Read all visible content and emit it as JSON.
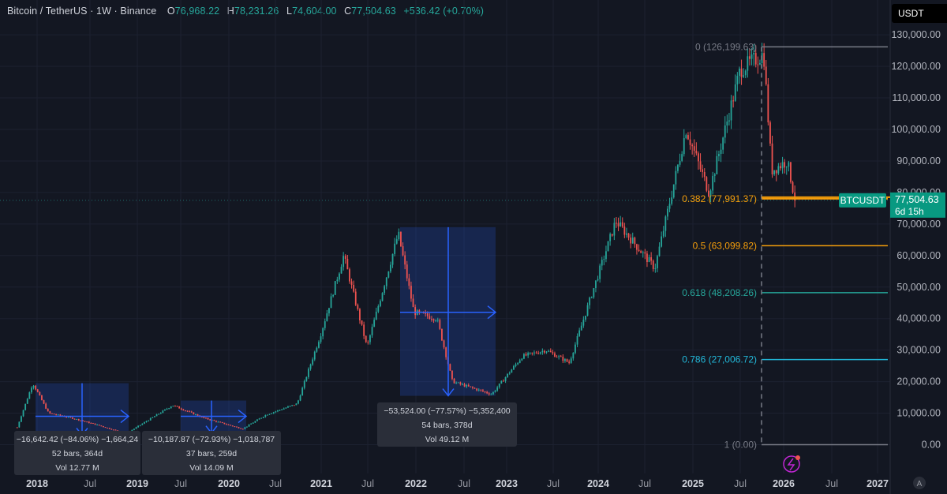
{
  "header": {
    "symbol": "Bitcoin / TetherUS · 1W · Binance",
    "open_label": "O",
    "open": "76,968.22",
    "high_label": "H",
    "high": "78,231.26",
    "low_label": "L",
    "low": "74,604.00",
    "close_label": "C",
    "close": "77,504.63",
    "change": "+536.42 (+0.70%)"
  },
  "currency_button": "USDT",
  "colors": {
    "up": "#26a69a",
    "down": "#ef5350",
    "fib0": "#787b86",
    "fib382": "#f59e0b",
    "fib5": "#f59e0b",
    "fib618": "#26a69a",
    "fib786": "#22b8d9",
    "fib1": "#787b86",
    "measure": "#2962ff"
  },
  "fibs": [
    {
      "label": "0 (126,199.63)",
      "value": 126199.63
    },
    {
      "label": "0.382 (77,991.37)",
      "value": 77991.37
    },
    {
      "label": "0.5 (63,099.82)",
      "value": 63099.82
    },
    {
      "label": "0.618 (48,208.26)",
      "value": 48208.26
    },
    {
      "label": "0.786 (27,006.72)",
      "value": 27006.72
    },
    {
      "label": "1 (0.00)",
      "value": 0
    }
  ],
  "price_tag": {
    "symbol": "BTCUSDT",
    "price": "77,504.63",
    "countdown": "6d 15h"
  },
  "measures": [
    {
      "line1": "−16,642.42 (−84.06%) −1,664,24",
      "line2": "52 bars, 364d",
      "line3": "Vol 12.77 M"
    },
    {
      "line1": "−10,187.87 (−72.93%) −1,018,787",
      "line2": "37 bars, 259d",
      "line3": "Vol 14.09 M"
    },
    {
      "line1": "−53,524.00 (−77.57%) −5,352,400",
      "line2": "54 bars, 378d",
      "line3": "Vol 49.12 M"
    }
  ],
  "chart_data": {
    "type": "candlestick",
    "y_axis": {
      "min": 0,
      "max": 130000,
      "ticks": [
        "130,000.00",
        "120,000.00",
        "110,000.00",
        "100,000.00",
        "90,000.00",
        "80,000.00",
        "70,000.00",
        "60,000.00",
        "50,000.00",
        "40,000.00",
        "30,000.00",
        "20,000.00",
        "10,000.00",
        "0.00"
      ]
    },
    "x_axis": {
      "ticks": [
        "2018",
        "Jul",
        "2019",
        "Jul",
        "2020",
        "Jul",
        "2021",
        "Jul",
        "2022",
        "Jul",
        "2023",
        "Jul",
        "2024",
        "Jul",
        "2025",
        "Jul",
        "2026",
        "Jul",
        "2027"
      ]
    },
    "series": [
      {
        "date": "2017-10",
        "price": 5500
      },
      {
        "date": "2017-12",
        "price": 19500
      },
      {
        "date": "2018-02",
        "price": 10000
      },
      {
        "date": "2018-05",
        "price": 8500
      },
      {
        "date": "2018-08",
        "price": 6500
      },
      {
        "date": "2018-12",
        "price": 3500
      },
      {
        "date": "2019-06",
        "price": 12500
      },
      {
        "date": "2019-10",
        "price": 8500
      },
      {
        "date": "2020-03",
        "price": 5000
      },
      {
        "date": "2020-06",
        "price": 9500
      },
      {
        "date": "2020-10",
        "price": 13000
      },
      {
        "date": "2021-01",
        "price": 35000
      },
      {
        "date": "2021-04",
        "price": 60000
      },
      {
        "date": "2021-07",
        "price": 31000
      },
      {
        "date": "2021-11",
        "price": 67000
      },
      {
        "date": "2022-01",
        "price": 42000
      },
      {
        "date": "2022-04",
        "price": 40000
      },
      {
        "date": "2022-06",
        "price": 20000
      },
      {
        "date": "2022-11",
        "price": 16000
      },
      {
        "date": "2023-03",
        "price": 28000
      },
      {
        "date": "2023-06",
        "price": 30000
      },
      {
        "date": "2023-09",
        "price": 26000
      },
      {
        "date": "2024-03",
        "price": 71000
      },
      {
        "date": "2024-08",
        "price": 56000
      },
      {
        "date": "2024-12",
        "price": 100000
      },
      {
        "date": "2025-03",
        "price": 80000
      },
      {
        "date": "2025-07",
        "price": 119000
      },
      {
        "date": "2025-10",
        "price": 124000
      },
      {
        "date": "2025-11",
        "price": 87000
      },
      {
        "date": "2026-01",
        "price": 90000
      },
      {
        "date": "2026-02",
        "price": 77504.63
      }
    ]
  }
}
